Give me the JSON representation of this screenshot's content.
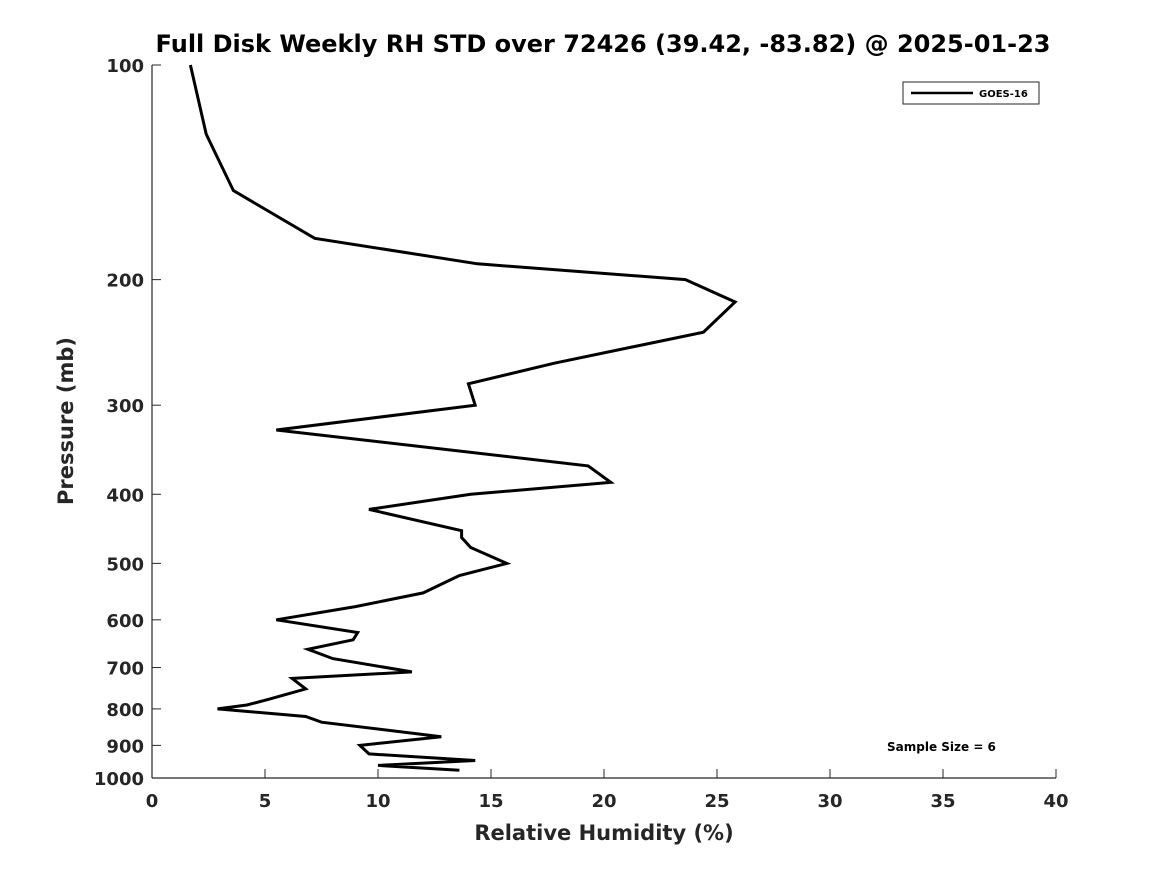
{
  "chart_data": {
    "type": "line",
    "title": "Full Disk Weekly RH STD over 72426 (39.42, -83.82) @ 2025-01-23",
    "xlabel": "Relative Humidity (%)",
    "ylabel": "Pressure (mb)",
    "xlim": [
      0,
      40
    ],
    "ylim": [
      100,
      1000
    ],
    "y_scale": "log",
    "y_inverted": true,
    "x_ticks": [
      0,
      5,
      10,
      15,
      20,
      25,
      30,
      35,
      40
    ],
    "y_ticks": [
      100,
      200,
      300,
      400,
      500,
      600,
      700,
      800,
      900,
      1000
    ],
    "grid": false,
    "legend_position": "top-right",
    "line_color": "#000000",
    "series": [
      {
        "name": "GOES-16",
        "x": [
          1.7,
          2.4,
          3.6,
          7.2,
          14.4,
          23.6,
          25.8,
          24.4,
          17.8,
          14.0,
          14.3,
          5.5,
          19.3,
          20.3,
          14.1,
          9.6,
          13.7,
          13.7,
          14.1,
          15.7,
          13.6,
          12.0,
          9.0,
          5.5,
          9.1,
          8.9,
          6.9,
          8.0,
          11.5,
          6.2,
          6.8,
          5.2,
          4.2,
          2.9,
          6.8,
          7.5,
          12.8,
          9.2,
          9.6,
          14.3,
          10.0,
          13.6
        ],
        "y": [
          100,
          125,
          150,
          175,
          190,
          200,
          215,
          237,
          262,
          280,
          300,
          325,
          365,
          385,
          400,
          420,
          450,
          460,
          475,
          500,
          520,
          550,
          575,
          600,
          625,
          640,
          660,
          680,
          710,
          725,
          750,
          775,
          790,
          800,
          820,
          835,
          875,
          900,
          925,
          945,
          960,
          975
        ]
      }
    ],
    "annotations": [
      "Sample Size = 6"
    ]
  }
}
